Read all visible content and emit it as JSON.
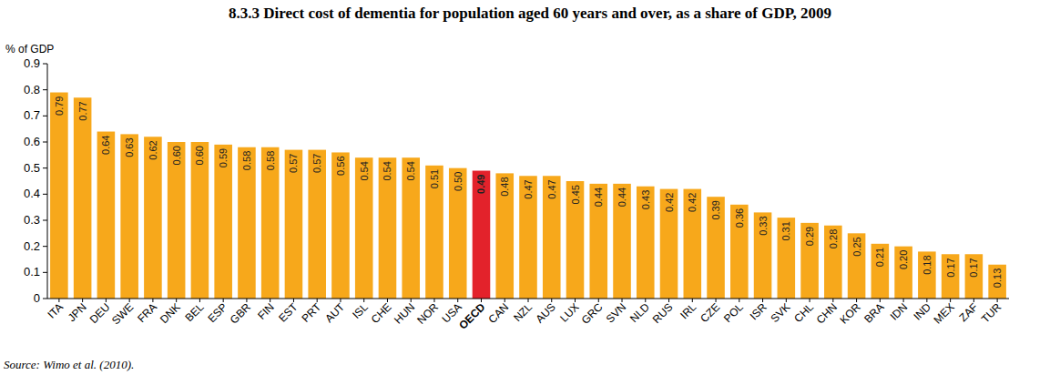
{
  "chart_data": {
    "type": "bar",
    "title": "8.3.3 Direct cost of dementia for population aged 60 years and over, as a share of GDP, 2009",
    "y_label": "% of GDP",
    "source": "Source: Wimo et al. (2010).",
    "categories": [
      "ITA",
      "JPN",
      "DEU",
      "SWE",
      "FRA",
      "DNK",
      "BEL",
      "ESP",
      "GBR",
      "FIN",
      "EST",
      "PRT",
      "AUT",
      "ISL",
      "CHE",
      "HUN",
      "NOR",
      "USA",
      "OECD",
      "CAN",
      "NZL",
      "AUS",
      "LUX",
      "GRC",
      "SVN",
      "NLD",
      "RUS",
      "IRL",
      "CZE",
      "POL",
      "ISR",
      "SVK",
      "CHL",
      "CHN",
      "KOR",
      "BRA",
      "IDN",
      "IND",
      "MEX",
      "ZAF",
      "TUR"
    ],
    "values": [
      0.79,
      0.77,
      0.64,
      0.63,
      0.62,
      0.6,
      0.6,
      0.59,
      0.58,
      0.58,
      0.57,
      0.57,
      0.56,
      0.54,
      0.54,
      0.54,
      0.51,
      0.5,
      0.49,
      0.48,
      0.47,
      0.47,
      0.45,
      0.44,
      0.44,
      0.43,
      0.42,
      0.42,
      0.39,
      0.36,
      0.33,
      0.31,
      0.29,
      0.28,
      0.25,
      0.21,
      0.2,
      0.18,
      0.17,
      0.17,
      0.13
    ],
    "value_labels": [
      "0.79",
      "0.77",
      "0.64",
      "0.63",
      "0.62",
      "0.60",
      "0.60",
      "0.59",
      "0.58",
      "0.58",
      "0.57",
      "0.57",
      "0.56",
      "0.54",
      "0.54",
      "0.54",
      "0.51",
      "0.50",
      "0.49",
      "0.48",
      "0.47",
      "0.47",
      "0.45",
      "0.44",
      "0.44",
      "0.43",
      "0.42",
      "0.42",
      "0.39",
      "0.36",
      "0.33",
      "0.31",
      "0.29",
      "0.28",
      "0.25",
      "0.21",
      "0.20",
      "0.18",
      "0.17",
      "0.17",
      "0.13"
    ],
    "colors": [
      "#f7a81b",
      "#f7a81b",
      "#f7a81b",
      "#f7a81b",
      "#f7a81b",
      "#f7a81b",
      "#f7a81b",
      "#f7a81b",
      "#f7a81b",
      "#f7a81b",
      "#f7a81b",
      "#f7a81b",
      "#f7a81b",
      "#f7a81b",
      "#f7a81b",
      "#f7a81b",
      "#f7a81b",
      "#f7a81b",
      "#e3222b",
      "#f7a81b",
      "#f7a81b",
      "#f7a81b",
      "#f7a81b",
      "#f7a81b",
      "#f7a81b",
      "#f7a81b",
      "#f7a81b",
      "#f7a81b",
      "#f7a81b",
      "#f7a81b",
      "#f7a81b",
      "#f7a81b",
      "#f7a81b",
      "#f7a81b",
      "#f7a81b",
      "#f7a81b",
      "#f7a81b",
      "#f7a81b",
      "#f7a81b",
      "#f7a81b",
      "#f7a81b"
    ],
    "ylim": [
      0,
      0.9
    ],
    "yticks": [
      0,
      0.1,
      0.2,
      0.3,
      0.4,
      0.5,
      0.6,
      0.7,
      0.8,
      0.9
    ],
    "grid": false,
    "data_labels": true
  }
}
